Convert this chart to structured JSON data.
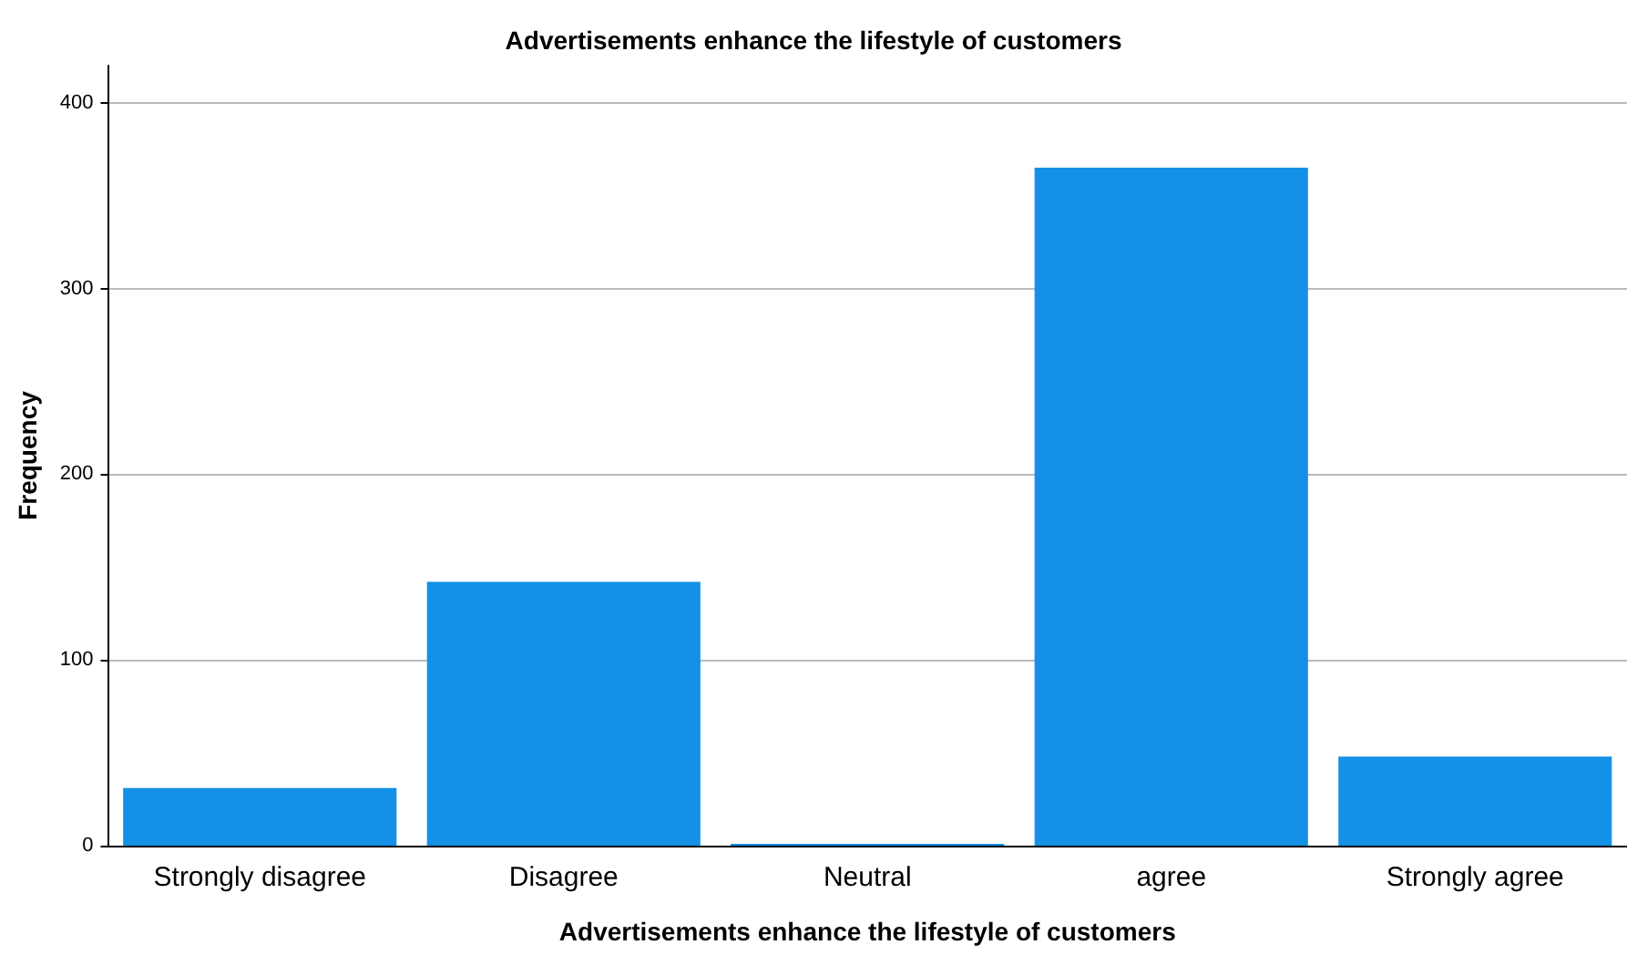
{
  "chart_data": {
    "type": "bar",
    "title": "Advertisements enhance the lifestyle of customers",
    "xlabel": "Advertisements enhance the lifestyle of customers",
    "ylabel": "Frequency",
    "categories": [
      "Strongly disagree",
      "Disagree",
      "Neutral",
      "agree",
      "Strongly agree"
    ],
    "values": [
      31,
      142,
      1,
      365,
      48
    ],
    "color": "#1491e6",
    "ylim": [
      0,
      420
    ],
    "yticks": [
      0,
      100,
      200,
      300,
      400
    ],
    "grid": "y"
  }
}
